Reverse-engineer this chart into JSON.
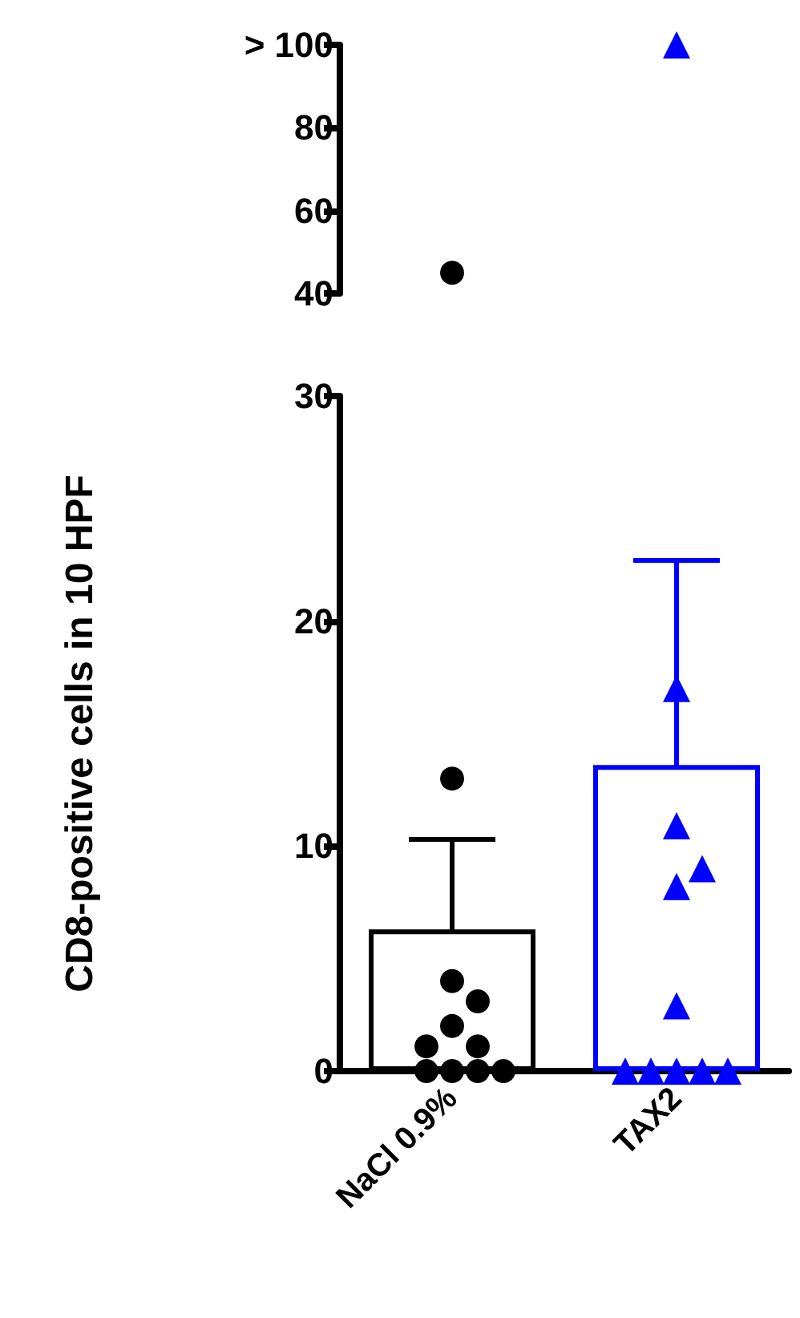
{
  "chart_data": [
    {
      "type": "scatter",
      "categories": [
        "NaCl 0.9%",
        "TAX2"
      ],
      "ylim": [
        40,
        100
      ],
      "yticks": [
        40,
        60,
        80,
        {
          "value": 100,
          "label": "> 100"
        }
      ],
      "tick_labels": "y",
      "series": [
        {
          "x": [
            "NaCl 0.9%"
          ],
          "values": [
            45
          ],
          "color": "#000000",
          "marker": "circle"
        },
        {
          "x": [
            "TAX2"
          ],
          "values": [
            100
          ],
          "color": "#0000ff",
          "marker": "triangle"
        }
      ]
    },
    {
      "type": "bar",
      "ylabel": "CD8-positive cells in 10 HPF",
      "categories": [
        "NaCl 0.9%",
        "TAX2"
      ],
      "ylim": [
        0,
        30
      ],
      "yticks": [
        0,
        10,
        20,
        30
      ],
      "series": [
        {
          "values": [
            6.3,
            13.6
          ],
          "colors": [
            "#000000",
            "#0000ff"
          ],
          "errors": [
            4.0,
            9.1
          ]
        },
        {
          "type": "scatter",
          "x": [
            "NaCl 0.9%",
            "NaCl 0.9%",
            "NaCl 0.9%",
            "NaCl 0.9%",
            "NaCl 0.9%",
            "NaCl 0.9%",
            "NaCl 0.9%",
            "NaCl 0.9%",
            "NaCl 0.9%",
            "NaCl 0.9%"
          ],
          "values": [
            13,
            4,
            3.1,
            2,
            1.1,
            1.1,
            0,
            0,
            0,
            0
          ],
          "color": "#000000",
          "marker": "circle"
        },
        {
          "type": "scatter",
          "x": [
            "TAX2",
            "TAX2",
            "TAX2",
            "TAX2",
            "TAX2",
            "TAX2",
            "TAX2",
            "TAX2",
            "TAX2",
            "TAX2"
          ],
          "values": [
            17,
            10.9,
            8.2,
            9,
            2.9,
            0,
            0,
            0,
            0,
            0
          ],
          "color": "#0000ff",
          "marker": "triangle"
        }
      ]
    }
  ]
}
